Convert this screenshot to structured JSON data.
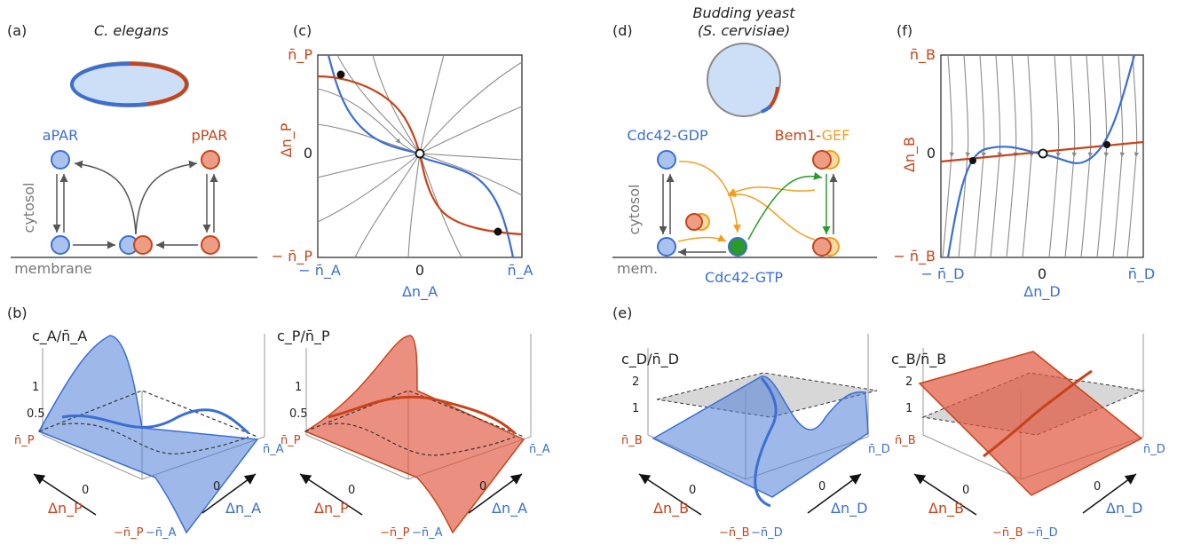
{
  "panels": {
    "a": "(a)",
    "b": "(b)",
    "c": "(c)",
    "d": "(d)",
    "e": "(e)",
    "f": "(f)"
  },
  "panel_a": {
    "title": "C. elegans",
    "apar": "aPAR",
    "ppar": "pPAR",
    "cytosol": "cytosol",
    "membrane": "membrane"
  },
  "panel_d": {
    "title_line1": "Budding yeast",
    "title_line2": "(S. cervisiae)",
    "cdc42_gdp": "Cdc42-GDP",
    "bem1": "Bem1-",
    "gef": "GEF",
    "cdc42_gtp": "Cdc42-GTP",
    "cytosol": "cytosol",
    "membrane": "mem."
  },
  "panel_c": {
    "ylabel": "Δn_P",
    "xlabel": "Δn_A",
    "ytick_top": "n̄_P",
    "ytick_mid": "0",
    "ytick_bot": "− n̄_P",
    "xtick_left": "− n̄_A",
    "xtick_mid": "0",
    "xtick_right": "n̄_A"
  },
  "panel_f": {
    "ylabel": "Δn_B",
    "xlabel": "Δn_D",
    "ytick_top": "n̄_B",
    "ytick_mid": "0",
    "ytick_bot": "− n̄_B",
    "xtick_left": "− n̄_D",
    "xtick_mid": "0",
    "xtick_right": "n̄_D"
  },
  "panel_b_left": {
    "zlabel": "c_A/n̄_A",
    "zticks": [
      "1",
      "0.5"
    ],
    "left_axis_label": "Δn_P",
    "right_axis_label": "Δn_A",
    "left_top": "n̄_P",
    "left_mid": "0",
    "left_bot": "−n̄_P",
    "right_top": "n̄_A",
    "right_mid": "0",
    "right_bot": "−n̄_A"
  },
  "panel_b_right": {
    "zlabel": "c_P/n̄_P",
    "zticks": [
      "1",
      "0.5"
    ],
    "left_axis_label": "Δn_P",
    "right_axis_label": "Δn_A",
    "left_top": "n̄_P",
    "left_mid": "0",
    "left_bot": "−n̄_P",
    "right_top": "n̄_A",
    "right_mid": "0",
    "right_bot": "−n̄_A"
  },
  "panel_e_left": {
    "zlabel": "c_D/n̄_D",
    "zticks": [
      "2",
      "1"
    ],
    "left_axis_label": "Δn_B",
    "right_axis_label": "Δn_D",
    "left_top": "n̄_B",
    "left_mid": "0",
    "left_bot": "−n̄_B",
    "right_top": "n̄_D",
    "right_mid": "0",
    "right_bot": "−n̄_D"
  },
  "panel_e_right": {
    "zlabel": "c_B/n̄_B",
    "zticks": [
      "2",
      "1"
    ],
    "left_axis_label": "Δn_B",
    "right_axis_label": "Δn_D",
    "left_top": "n̄_B",
    "left_mid": "0",
    "left_bot": "−n̄_B",
    "right_top": "n̄_D",
    "right_mid": "0",
    "right_bot": "−n̄_D"
  },
  "colors": {
    "blue": "#3b6fd1",
    "red": "#c8431a",
    "orange": "#f0a020",
    "green": "#2a9a2a",
    "gray": "#777777"
  }
}
